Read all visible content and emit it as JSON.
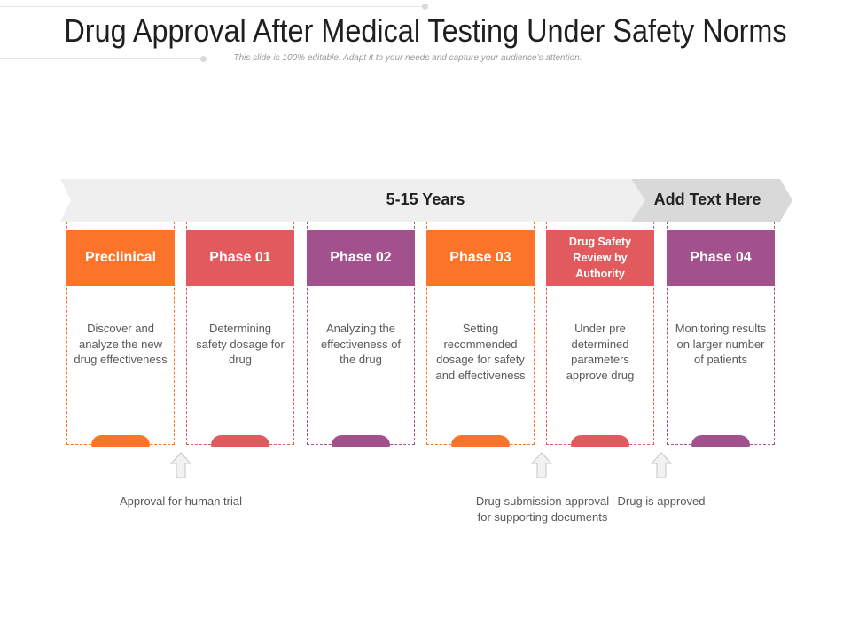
{
  "header": {
    "title": "Drug Approval After Medical Testing Under Safety Norms",
    "subtitle": "This slide is 100% editable. Adapt it to your needs and capture your audience’s attention."
  },
  "banner": {
    "main_label": "5-15 Years",
    "end_label": "Add Text Here"
  },
  "colors": {
    "orange": "#fb7429",
    "red": "#e05a5e",
    "purple": "#a3518c",
    "banner": "#efefef",
    "banner_end": "#d9d9d9"
  },
  "phases": [
    {
      "title": "Preclinical",
      "desc": "Discover and analyze the new drug effectiveness",
      "color": "orange"
    },
    {
      "title": "Phase 01",
      "desc": "Determining safety dosage for drug",
      "color": "red"
    },
    {
      "title": "Phase 02",
      "desc": "Analyzing the effectiveness of the drug",
      "color": "purple"
    },
    {
      "title": "Phase 03",
      "desc": "Setting recommended dosage for safety and effectiveness",
      "color": "orange"
    },
    {
      "title": "Drug Safety Review by Authority",
      "desc": "Under pre determined parameters approve drug",
      "color": "red"
    },
    {
      "title": "Phase 04",
      "desc": "Monitoring results on larger number of patients",
      "color": "purple"
    }
  ],
  "notes": [
    {
      "text": "Approval for human trial"
    },
    {
      "text": "Drug submission approval for supporting documents"
    },
    {
      "text": "Drug is approved"
    }
  ]
}
